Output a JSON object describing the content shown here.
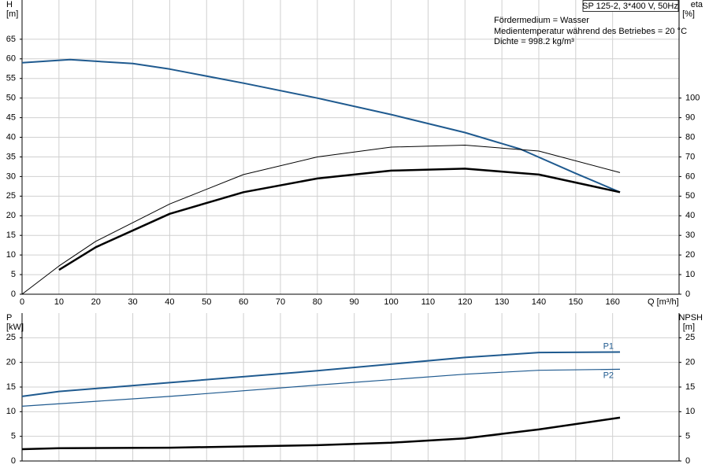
{
  "chart_data": [
    {
      "type": "line",
      "title": "SP 125-2, 3*400 V, 50Hz",
      "annotations": [
        "Fördermedium = Wasser",
        "Medientemperatur während des Betriebes = 20 °C",
        "Dichte = 998.2 kg/m³"
      ],
      "ylabel": "H",
      "ylabel_unit": "[m]",
      "y2label": "eta",
      "y2label_unit": "[%]",
      "xlabel": "Q [m³/h]",
      "xlim": [
        0,
        178
      ],
      "xticks": [
        0,
        10,
        20,
        30,
        40,
        50,
        60,
        70,
        80,
        90,
        100,
        110,
        120,
        130,
        140,
        150,
        160
      ],
      "ylim": [
        0,
        75
      ],
      "yticks": [
        0,
        5,
        10,
        15,
        20,
        25,
        30,
        35,
        40,
        45,
        50,
        55,
        60,
        65
      ],
      "y2lim": [
        0,
        150
      ],
      "y2ticks": [
        0,
        10,
        20,
        30,
        40,
        50,
        60,
        70,
        80,
        90,
        100
      ],
      "grid": true,
      "series": [
        {
          "color": "#1f5a8f",
          "width": 2,
          "x": [
            0,
            13,
            30,
            40,
            60,
            80,
            100,
            120,
            135,
            150,
            162
          ],
          "values": [
            59,
            59.8,
            58.8,
            57.4,
            53.8,
            50,
            45.8,
            41.2,
            37,
            30.8,
            26
          ]
        },
        {
          "color": "#000000",
          "width": 1,
          "axis": "y2",
          "x": [
            0,
            10,
            20,
            40,
            60,
            80,
            100,
            120,
            140,
            162
          ],
          "values": [
            0,
            14.4,
            27,
            46,
            61,
            70,
            75,
            76,
            73,
            62
          ]
        },
        {
          "color": "#000000",
          "width": 2.5,
          "axis": "y2",
          "x": [
            10,
            20,
            40,
            60,
            80,
            100,
            120,
            140,
            162
          ],
          "values": [
            12.4,
            24,
            41,
            52,
            59,
            63,
            64,
            61,
            52
          ]
        }
      ]
    },
    {
      "type": "line",
      "ylabel": "P",
      "ylabel_unit": "[kW]",
      "y2label": "NPSH",
      "y2label_unit": "[m]",
      "xlim": [
        0,
        178
      ],
      "ylim": [
        0,
        30
      ],
      "yticks": [
        0,
        5,
        10,
        15,
        20,
        25
      ],
      "y2lim": [
        0,
        30
      ],
      "y2ticks": [
        0,
        5,
        10,
        15,
        20,
        25
      ],
      "grid": true,
      "series": [
        {
          "name": "P1",
          "color": "#1f5a8f",
          "width": 2,
          "x": [
            0,
            10,
            40,
            80,
            120,
            140,
            162
          ],
          "values": [
            13.1,
            14.1,
            15.9,
            18.3,
            21,
            22,
            22.1
          ]
        },
        {
          "name": "P2",
          "color": "#1f5a8f",
          "width": 1.2,
          "x": [
            0,
            40,
            80,
            120,
            140,
            162
          ],
          "values": [
            11.1,
            13.1,
            15.4,
            17.6,
            18.4,
            18.6
          ]
        },
        {
          "color": "#000000",
          "width": 2.5,
          "axis": "y2",
          "x": [
            0,
            10,
            40,
            80,
            100,
            120,
            140,
            162
          ],
          "values": [
            2.4,
            2.6,
            2.7,
            3.2,
            3.7,
            4.6,
            6.4,
            8.8
          ]
        }
      ]
    }
  ]
}
